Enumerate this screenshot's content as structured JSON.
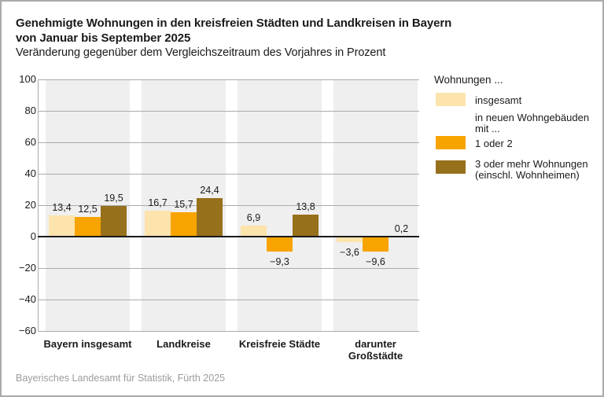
{
  "header": {
    "title_line1": "Genehmigte Wohnungen in den kreisfreien Städten und Landkreisen in Bayern",
    "title_line2": "von Januar bis September 2025",
    "subtitle": "Veränderung gegenüber dem Vergleichszeitraum des Vorjahres in Prozent"
  },
  "legend": {
    "header": "Wohnungen ...",
    "item1_label": "insgesamt",
    "item1_color": "#FCE4AC",
    "note": "in neuen Wohngebäuden mit ...",
    "item2_label": "1 oder 2",
    "item2_color": "#F7A400",
    "item3_label": "3 oder mehr Wohnungen (einschl. Wohnheimen)",
    "item3_color": "#97701B"
  },
  "footer": {
    "source": "Bayerisches Landesamt für Statistik, Fürth 2025"
  },
  "chart_data": {
    "type": "bar",
    "title": "Genehmigte Wohnungen in den kreisfreien Städten und Landkreisen in Bayern von Januar bis September 2025",
    "subtitle": "Veränderung gegenüber dem Vergleichszeitraum des Vorjahres in Prozent",
    "categories": [
      "Bayern insgesamt",
      "Landkreise",
      "Kreisfreie Städte",
      "darunter Großstädte"
    ],
    "category_label_lines": [
      [
        "Bayern insgesamt"
      ],
      [
        "Landkreise"
      ],
      [
        "Kreisfreie Städte"
      ],
      [
        "darunter",
        "Großstädte"
      ]
    ],
    "series": [
      {
        "name": "insgesamt",
        "color": "#FCE4AC",
        "values": [
          13.4,
          16.7,
          6.9,
          -3.6
        ]
      },
      {
        "name": "1 oder 2",
        "color": "#F7A400",
        "values": [
          12.5,
          15.7,
          -9.3,
          -9.6
        ]
      },
      {
        "name": "3 oder mehr Wohnungen (einschl. Wohnheimen)",
        "color": "#97701B",
        "values": [
          19.5,
          24.4,
          13.8,
          0.2
        ]
      }
    ],
    "ylim": [
      -60,
      100
    ],
    "ytick_step": 20,
    "grid": true,
    "legend_position": "right",
    "decimal_separator": ",",
    "band_color": "#EFEFEF",
    "grid_color": "#ABABAB",
    "zero_line_color": "#1A1A1A"
  }
}
